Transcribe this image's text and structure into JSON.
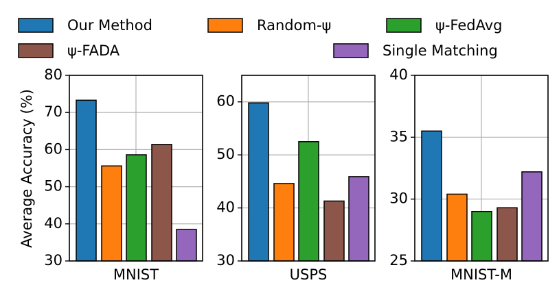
{
  "legend": {
    "placement": "top",
    "items": [
      {
        "label": "Our Method",
        "color": "#1f77b4"
      },
      {
        "label": "Random-ψ",
        "color": "#ff7f0e"
      },
      {
        "label": "ψ-FedAvg",
        "color": "#2ca02c"
      },
      {
        "label": "ψ-FADA",
        "color": "#8c564b"
      },
      {
        "label": "Single Matching",
        "color": "#9467bd"
      }
    ]
  },
  "ylabel": "Average Accuracy (%)",
  "chart_data": [
    {
      "type": "bar",
      "title": "",
      "xlabel": "MNIST",
      "ylabel": "Average Accuracy (%)",
      "grid": true,
      "ylim": [
        30,
        80
      ],
      "yticks": [
        30,
        40,
        50,
        60,
        70,
        80
      ],
      "categories": [
        "Our Method",
        "Random-ψ",
        "ψ-FedAvg",
        "ψ-FADA",
        "Single Matching"
      ],
      "values": [
        73.3,
        55.6,
        58.6,
        61.4,
        38.5
      ],
      "colors": [
        "#1f77b4",
        "#ff7f0e",
        "#2ca02c",
        "#8c564b",
        "#9467bd"
      ]
    },
    {
      "type": "bar",
      "title": "",
      "xlabel": "USPS",
      "ylabel": "",
      "grid": true,
      "ylim": [
        30,
        65
      ],
      "yticks": [
        30,
        40,
        50,
        60
      ],
      "categories": [
        "Our Method",
        "Random-ψ",
        "ψ-FedAvg",
        "ψ-FADA",
        "Single Matching"
      ],
      "values": [
        59.8,
        44.6,
        52.5,
        41.3,
        45.9
      ],
      "colors": [
        "#1f77b4",
        "#ff7f0e",
        "#2ca02c",
        "#8c564b",
        "#9467bd"
      ]
    },
    {
      "type": "bar",
      "title": "",
      "xlabel": "MNIST-M",
      "ylabel": "",
      "grid": true,
      "ylim": [
        25,
        40
      ],
      "yticks": [
        25,
        30,
        35,
        40
      ],
      "categories": [
        "Our Method",
        "Random-ψ",
        "ψ-FedAvg",
        "ψ-FADA",
        "Single Matching"
      ],
      "values": [
        35.5,
        30.4,
        29.0,
        29.3,
        32.2
      ],
      "colors": [
        "#1f77b4",
        "#ff7f0e",
        "#2ca02c",
        "#8c564b",
        "#9467bd"
      ]
    }
  ]
}
